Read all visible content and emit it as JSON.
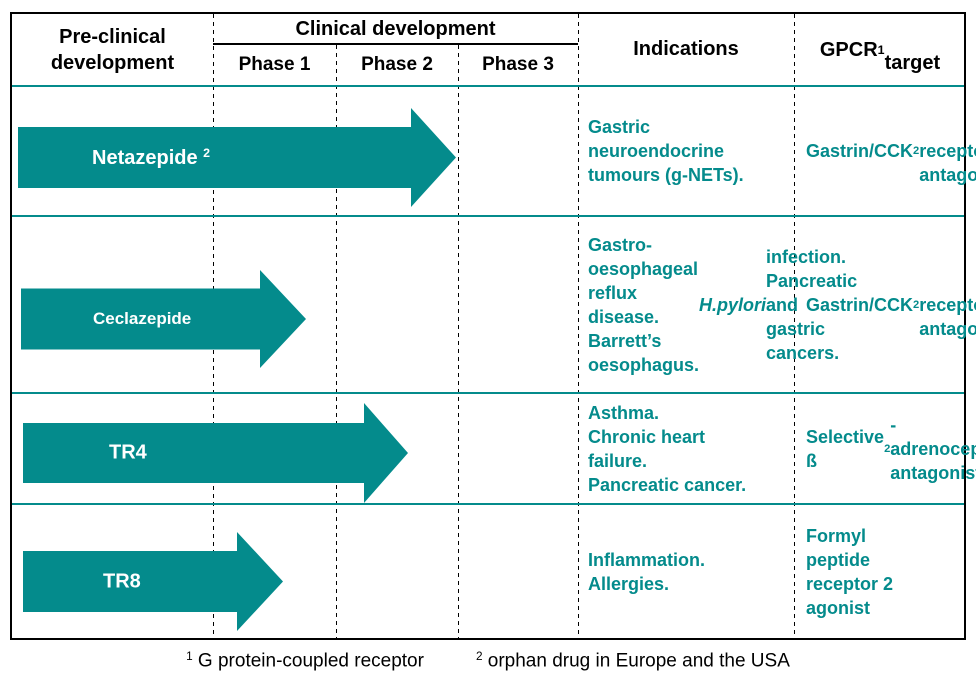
{
  "colors": {
    "teal": "#048b8c",
    "border": "#000000",
    "arrow_label": "#ffffff"
  },
  "header": {
    "preclinical": "Pre-clinical\ndevelopment",
    "clinical": "Clinical development",
    "phases": [
      "Phase 1",
      "Phase 2",
      "Phase 3"
    ],
    "indications": "Indications",
    "gpcr": [
      {
        "t": "GPCR "
      },
      {
        "t": "1",
        "style": "sup"
      },
      {
        "t": "\ntarget"
      }
    ]
  },
  "rows": [
    {
      "drug": [
        {
          "t": "Netazepide "
        },
        {
          "t": "2",
          "style": "sup"
        }
      ],
      "development_extent": "arrow reaches end of Phase 2",
      "indications": [
        {
          "t": "Gastric\nneuroendocrine\ntumours (g-NETs)."
        }
      ],
      "target": [
        {
          "t": "Gastrin/CCK"
        },
        {
          "t": "2",
          "style": "sub"
        },
        {
          "t": "\nreceptor\nantagonist"
        }
      ]
    },
    {
      "drug": [
        {
          "t": "Ceclazepide"
        }
      ],
      "development_extent": "arrow reaches late Phase 1",
      "indications": [
        {
          "t": "Gastro-oesophageal\nreflux disease.\nBarrett’s\noesophagus.\n"
        },
        {
          "t": "H.pylori",
          "style": "i"
        },
        {
          "t": " infection.\nPancreatic and\ngastric cancers."
        }
      ],
      "target": [
        {
          "t": "Gastrin/CCK"
        },
        {
          "t": "2",
          "style": "sub"
        },
        {
          "t": "\nreceptor\nantagonist"
        }
      ]
    },
    {
      "drug": [
        {
          "t": "TR4"
        }
      ],
      "development_extent": "arrow reaches mid Phase 2",
      "indications": [
        {
          "t": "Asthma.\nChronic heart\nfailure.\nPancreatic cancer."
        }
      ],
      "target": [
        {
          "t": "Selective ß"
        },
        {
          "t": "2",
          "style": "sub"
        },
        {
          "t": "-\nadrenoceptor\nantagonist"
        }
      ]
    },
    {
      "drug": [
        {
          "t": "TR8"
        }
      ],
      "development_extent": "arrow reaches mid Phase 1",
      "indications": [
        {
          "t": "Inflammation.\nAllergies."
        }
      ],
      "target": [
        {
          "t": "Formyl\npeptide\nreceptor 2\nagonist"
        }
      ]
    }
  ],
  "footnotes": [
    [
      {
        "t": "1",
        "style": "sup"
      },
      {
        "t": " G protein-coupled receptor"
      }
    ],
    [
      {
        "t": "2",
        "style": "sup"
      },
      {
        "t": " orphan drug in Europe and the USA"
      }
    ]
  ]
}
